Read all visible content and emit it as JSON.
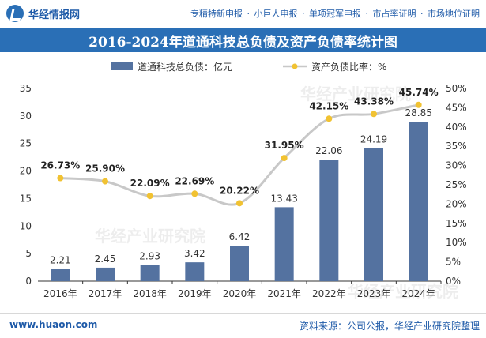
{
  "header": {
    "site_name": "华经情报网",
    "nav": [
      "专精特新申报",
      "·",
      "小巨人申报",
      "·",
      "单项冠军申报",
      "·",
      "市占率证明",
      "·",
      "市场地位证明"
    ]
  },
  "footer": {
    "url": "www.huaon.com",
    "source": "资料来源：公司公报，华经产业研究院整理"
  },
  "colors": {
    "header_bg": "#2a6fb6",
    "bar": "#5472a0",
    "line": "#c8c8c8",
    "marker": "#f1c232"
  },
  "chart_data": {
    "type": "bar+line",
    "title": "2016-2024年道通科技总负债及资产负债率统计图",
    "categories": [
      "2016年",
      "2017年",
      "2018年",
      "2019年",
      "2020年",
      "2021年",
      "2022年",
      "2023年",
      "2024年"
    ],
    "series": [
      {
        "name": "道通科技总负债：亿元",
        "type": "bar",
        "axis": "left",
        "values": [
          2.21,
          2.45,
          2.93,
          3.42,
          6.42,
          13.43,
          22.06,
          24.19,
          28.85
        ],
        "labels": [
          "2.21",
          "2.45",
          "2.93",
          "3.42",
          "6.42",
          "13.43",
          "22.06",
          "24.19",
          "28.85"
        ]
      },
      {
        "name": "资产负债比率：%",
        "type": "line",
        "axis": "right",
        "values": [
          26.73,
          25.9,
          22.09,
          22.69,
          20.22,
          31.95,
          42.15,
          43.38,
          45.74
        ],
        "labels": [
          "26.73%",
          "25.90%",
          "22.09%",
          "22.69%",
          "20.22%",
          "31.95%",
          "42.15%",
          "43.38%",
          "45.74%"
        ]
      }
    ],
    "y_left": {
      "min": 0,
      "max": 35,
      "ticks": [
        "0",
        "5",
        "10",
        "15",
        "20",
        "25",
        "30",
        "35"
      ]
    },
    "y_right": {
      "min": 0,
      "max": 50,
      "ticks": [
        "0%",
        "5%",
        "10%",
        "15%",
        "20%",
        "25%",
        "30%",
        "35%",
        "40%",
        "45%",
        "50%"
      ]
    },
    "legend_position": "top",
    "watermark": "华经产业研究院"
  }
}
